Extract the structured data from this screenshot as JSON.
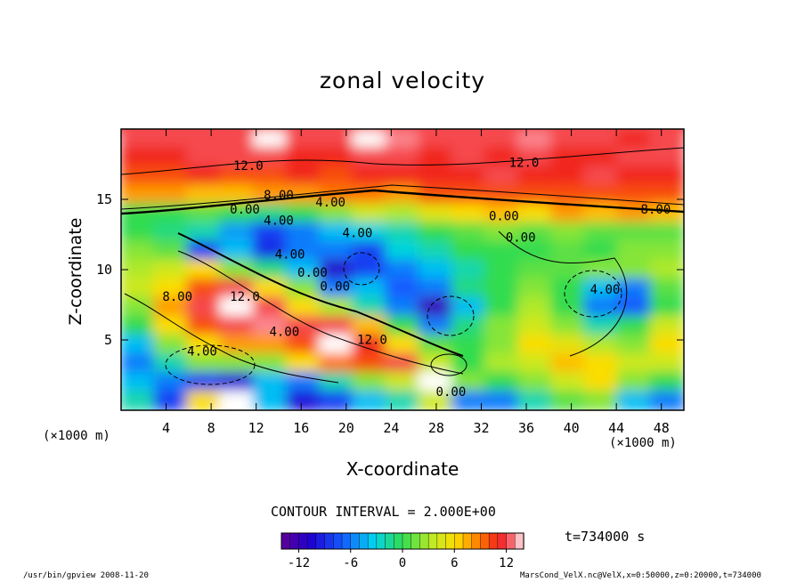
{
  "chart_data": {
    "type": "heatmap",
    "title": "zonal velocity",
    "xlabel": "X-coordinate",
    "ylabel": "Z-coordinate",
    "x_unit": "(×1000 m)",
    "y_unit": "(×1000 m)",
    "x_ticks": [
      4,
      8,
      12,
      16,
      20,
      24,
      28,
      32,
      36,
      40,
      44,
      48
    ],
    "y_ticks": [
      5,
      10,
      15
    ],
    "xlim": [
      0,
      50
    ],
    "ylim": [
      0,
      20
    ],
    "contour_interval_text": "CONTOUR INTERVAL = 2.000E+00",
    "time_text": "t=734000 s",
    "colorbar": {
      "range": [
        -14,
        14
      ],
      "tick_values": [
        -12,
        -6,
        0,
        6,
        12
      ],
      "tick_labels": [
        "-12",
        "-6",
        "0",
        "6",
        "12"
      ]
    },
    "contour_labels": [
      {
        "text": "12.0",
        "x": 11.3,
        "y": 17.1
      },
      {
        "text": "12.0",
        "x": 35.8,
        "y": 17.3
      },
      {
        "text": "8.00",
        "x": 14.0,
        "y": 15.0
      },
      {
        "text": "4.00",
        "x": 18.6,
        "y": 14.5
      },
      {
        "text": "0.00",
        "x": 11.0,
        "y": 14.0
      },
      {
        "text": "8.00",
        "x": 47.5,
        "y": 14.0
      },
      {
        "text": "0.00",
        "x": 34.0,
        "y": 13.5
      },
      {
        "text": "4.00",
        "x": 14.0,
        "y": 13.2
      },
      {
        "text": "4.00",
        "x": 21.0,
        "y": 12.3
      },
      {
        "text": "0.00",
        "x": 35.5,
        "y": 12.0
      },
      {
        "text": "4.00",
        "x": 15.0,
        "y": 10.8
      },
      {
        "text": "0.00",
        "x": 17.0,
        "y": 9.5
      },
      {
        "text": "0.00",
        "x": 19.0,
        "y": 8.5
      },
      {
        "text": "12.0",
        "x": 11.0,
        "y": 7.8
      },
      {
        "text": "8.00",
        "x": 5.0,
        "y": 7.8
      },
      {
        "text": "4.00",
        "x": 43.0,
        "y": 8.3
      },
      {
        "text": "4.00",
        "x": 14.5,
        "y": 5.3
      },
      {
        "text": "12.0",
        "x": 22.3,
        "y": 4.7
      },
      {
        "text": "4.00",
        "x": 7.2,
        "y": 3.9
      },
      {
        "text": "0.00",
        "x": 29.3,
        "y": 1.0
      }
    ],
    "field": [
      [
        12,
        12,
        12,
        12,
        14,
        12,
        12,
        14,
        13,
        12,
        12,
        12,
        13,
        12,
        12,
        11,
        12
      ],
      [
        11,
        11,
        12,
        12,
        12,
        11,
        11,
        12,
        12,
        11,
        12,
        11,
        12,
        11,
        11,
        12,
        12
      ],
      [
        10,
        10,
        11,
        10,
        10,
        11,
        10,
        11,
        11,
        11,
        11,
        12,
        11,
        11,
        12,
        11,
        11
      ],
      [
        8,
        8,
        7,
        7,
        8,
        8,
        9,
        9,
        8,
        10,
        10,
        10,
        10,
        10,
        10,
        10,
        10
      ],
      [
        0,
        0,
        1,
        0,
        -1,
        0,
        2,
        4,
        3,
        5,
        6,
        7,
        6,
        8,
        7,
        8,
        7
      ],
      [
        0,
        -1,
        -2,
        -5,
        -8,
        -6,
        -4,
        -3,
        -2,
        0,
        1,
        2,
        1,
        2,
        1,
        1,
        1
      ],
      [
        2,
        1,
        -8,
        -4,
        -9,
        -6,
        -6,
        -8,
        -3,
        -2,
        0,
        0,
        0,
        1,
        0,
        2,
        2
      ],
      [
        3,
        4,
        6,
        2,
        -1,
        -4,
        -11,
        -8,
        -6,
        -4,
        -2,
        0,
        1,
        1,
        2,
        2,
        3
      ],
      [
        4,
        6,
        10,
        12,
        6,
        2,
        -6,
        -4,
        -7,
        -6,
        -1,
        0,
        2,
        0,
        -4,
        -6,
        1
      ],
      [
        2,
        8,
        12,
        14,
        12,
        6,
        3,
        -2,
        -6,
        -12,
        -4,
        0,
        3,
        0,
        -6,
        -7,
        0
      ],
      [
        0,
        6,
        10,
        12,
        13,
        12,
        12,
        7,
        0,
        -6,
        -1,
        2,
        4,
        2,
        -2,
        0,
        4
      ],
      [
        -4,
        2,
        6,
        8,
        8,
        10,
        14,
        11,
        6,
        1,
        0,
        2,
        6,
        5,
        3,
        2,
        6
      ],
      [
        -6,
        -2,
        2,
        2,
        2,
        6,
        9,
        10,
        12,
        4,
        0,
        3,
        4,
        7,
        6,
        4,
        4
      ],
      [
        -4,
        -6,
        -8,
        -10,
        -4,
        -6,
        -2,
        2,
        4,
        14,
        2,
        0,
        2,
        4,
        6,
        2,
        0
      ],
      [
        -2,
        -8,
        6,
        14,
        -4,
        -10,
        -8,
        -4,
        -2,
        4,
        -6,
        -6,
        -2,
        1,
        2,
        -4,
        -6
      ]
    ]
  },
  "footer": {
    "left": "/usr/bin/gpview  2008-11-20",
    "right": "MarsCond_VelX.nc@VelX,x=0:50000,z=0:20000,t=734000"
  }
}
